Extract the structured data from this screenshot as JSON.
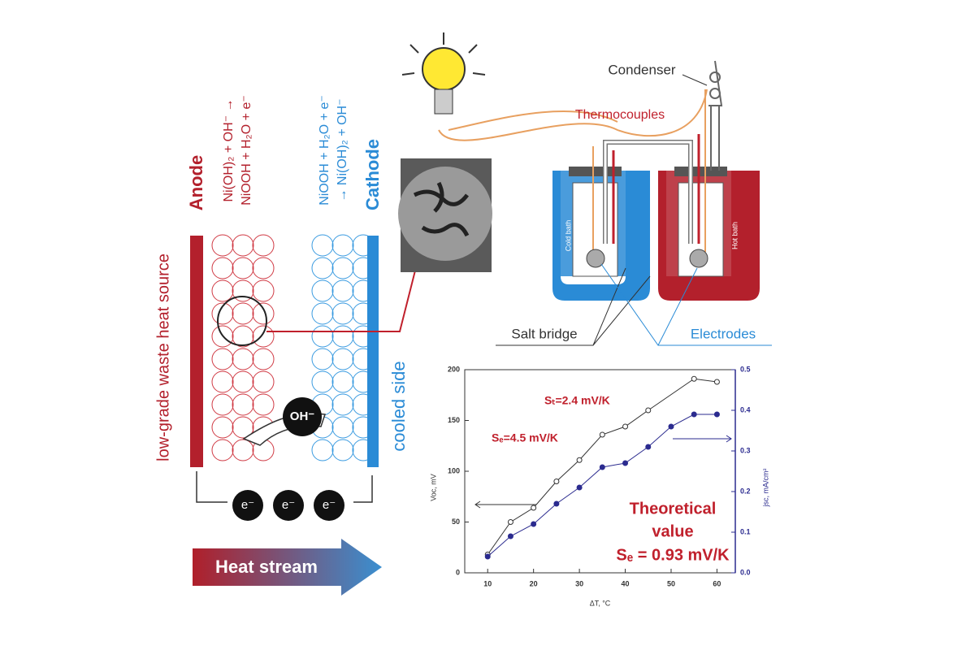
{
  "diagram": {
    "anode": "Anode",
    "anode_reaction": [
      "Ni(OH)₂ + OH⁻ →",
      "NiOOH + H₂O + e⁻"
    ],
    "cathode_reaction": [
      "NiOOH + H₂O + e⁻",
      "→ Ni(OH)₂ + OH⁻"
    ],
    "cathode": "Cathode",
    "heat_source": "low-grade waste heat source",
    "cooled_side": "cooled side",
    "ion": "OH⁻",
    "electrons": [
      "e⁻",
      "e⁻",
      "e⁻"
    ],
    "heat_stream": "Heat stream",
    "condenser": "Condenser",
    "thermocouples": "Thermocouples",
    "cold_bath": "Cold bath",
    "hot_bath": "Hot bath",
    "salt_bridge": "Salt bridge",
    "electrodes": "Electrodes"
  },
  "chart_data": {
    "type": "scatter",
    "x_label": "ΔT, °C",
    "y_label": "Voc, mV",
    "y2_label": "jsc, mA/cm²",
    "annotations": [
      "Sₜ=2.4 mV/K",
      "Sₑ=4.5 mV/K",
      "Theoretical",
      "value",
      "Sₑ = 0.93 mV/K"
    ],
    "xlim": [
      5,
      64
    ],
    "xticks": [
      10,
      20,
      30,
      40,
      50,
      60
    ],
    "ylim": [
      0,
      200
    ],
    "yticks": [
      0,
      50,
      100,
      150,
      200
    ],
    "y2lim": [
      0,
      0.5
    ],
    "y2ticks": [
      {
        "value": 0,
        "label": "0.0"
      },
      0.1,
      0.2,
      0.3,
      0.4,
      0.5
    ],
    "series": [
      {
        "name": "Voc",
        "color": "#333333",
        "marker": "open",
        "x": [
          10,
          15,
          20,
          25,
          30,
          35,
          40,
          45,
          55,
          60
        ],
        "values": [
          18,
          50,
          64,
          90,
          111,
          136,
          144,
          160,
          191,
          188
        ]
      },
      {
        "name": "jsc",
        "color": "#2b2b8f",
        "marker": "filled",
        "axis": "y2",
        "x": [
          10,
          15,
          20,
          25,
          30,
          35,
          40,
          45,
          50,
          55,
          60
        ],
        "values": [
          0.04,
          0.09,
          0.12,
          0.17,
          0.21,
          0.26,
          0.27,
          0.31,
          0.36,
          0.39,
          0.39
        ]
      }
    ]
  }
}
